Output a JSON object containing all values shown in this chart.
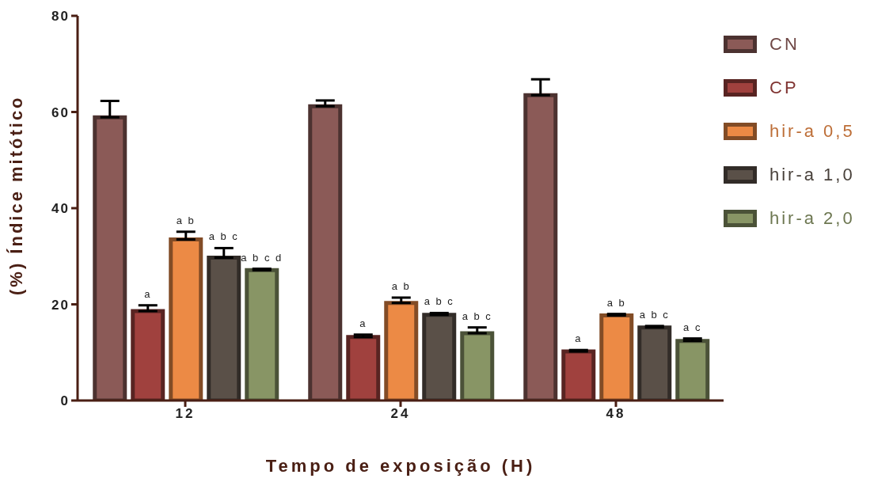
{
  "chart_data": {
    "type": "bar",
    "xlabel": "Tempo de exposição (H)",
    "ylabel": "(%) Índice mitótico",
    "categories": [
      "12",
      "24",
      "48"
    ],
    "ylim": [
      0,
      80
    ],
    "yticks": [
      0,
      20,
      40,
      60,
      80
    ],
    "grid": false,
    "legend": "right",
    "series": [
      {
        "name": "CN",
        "color": "#8b5a57",
        "values": [
          58.9,
          61.2,
          63.5
        ],
        "errors": [
          3.4,
          1.2,
          3.3
        ]
      },
      {
        "name": "CP",
        "color": "#a0413e",
        "values": [
          18.6,
          13.2,
          10.2
        ],
        "errors": [
          1.2,
          0.5,
          0.3
        ],
        "value_labels": [
          "a",
          "a",
          "a"
        ]
      },
      {
        "name": "hir-a 0,5",
        "color": "#ec8a45",
        "values": [
          33.5,
          20.3,
          17.7
        ],
        "errors": [
          1.6,
          1.1,
          0.3
        ],
        "value_labels": [
          "a b",
          "a b",
          "a b"
        ]
      },
      {
        "name": "hir-a 1,0",
        "color": "#5a5048",
        "values": [
          29.7,
          17.8,
          15.2
        ],
        "errors": [
          2.0,
          0.4,
          0.3
        ],
        "value_labels": [
          "a b c",
          "a b c",
          "a b c"
        ]
      },
      {
        "name": "hir-a 2,0",
        "color": "#889565",
        "values": [
          27.1,
          14.0,
          12.4
        ],
        "errors": [
          0.3,
          1.2,
          0.5
        ],
        "value_labels": [
          "a b c d",
          "a b c",
          "a c"
        ]
      }
    ]
  }
}
